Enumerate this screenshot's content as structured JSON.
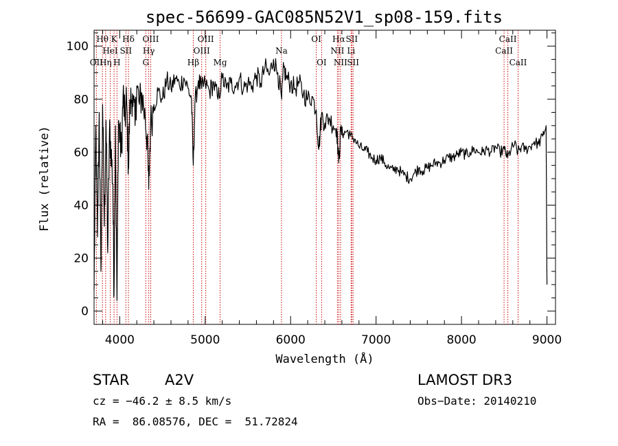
{
  "chart_data": {
    "type": "line",
    "title": "spec-56699-GAC085N52V1_sp08-159.fits",
    "xlabel": "Wavelength (Å)",
    "ylabel": "Flux (relative)",
    "xlim": [
      3700,
      9100
    ],
    "ylim": [
      -5,
      106
    ],
    "xticks": [
      4000,
      5000,
      6000,
      7000,
      8000,
      9000
    ],
    "yticks": [
      0,
      20,
      40,
      60,
      80,
      100
    ],
    "grid": false,
    "colors": {
      "line": "#000000",
      "marker": "#cc0000",
      "background": "#ffffff"
    },
    "series": [
      {
        "name": "flux",
        "points": [
          [
            3700,
            8
          ],
          [
            3720,
            70
          ],
          [
            3740,
            28
          ],
          [
            3760,
            75
          ],
          [
            3780,
            15
          ],
          [
            3800,
            78
          ],
          [
            3820,
            32
          ],
          [
            3840,
            72
          ],
          [
            3860,
            22
          ],
          [
            3880,
            68
          ],
          [
            3900,
            60
          ],
          [
            3920,
            48
          ],
          [
            3933,
            6
          ],
          [
            3950,
            70
          ],
          [
            3968,
            4
          ],
          [
            3985,
            72
          ],
          [
            4000,
            66
          ],
          [
            4020,
            60
          ],
          [
            4040,
            82
          ],
          [
            4060,
            72
          ],
          [
            4080,
            80
          ],
          [
            4102,
            54
          ],
          [
            4120,
            78
          ],
          [
            4150,
            82
          ],
          [
            4180,
            70
          ],
          [
            4200,
            85
          ],
          [
            4230,
            78
          ],
          [
            4260,
            82
          ],
          [
            4300,
            72
          ],
          [
            4320,
            66
          ],
          [
            4340,
            46
          ],
          [
            4360,
            70
          ],
          [
            4400,
            78
          ],
          [
            4450,
            83
          ],
          [
            4500,
            80
          ],
          [
            4550,
            87
          ],
          [
            4600,
            84
          ],
          [
            4650,
            88
          ],
          [
            4700,
            85
          ],
          [
            4750,
            88
          ],
          [
            4800,
            84
          ],
          [
            4840,
            80
          ],
          [
            4861,
            55
          ],
          [
            4880,
            78
          ],
          [
            4920,
            87
          ],
          [
            4960,
            84
          ],
          [
            5000,
            86
          ],
          [
            5050,
            83
          ],
          [
            5100,
            86
          ],
          [
            5150,
            80
          ],
          [
            5200,
            88
          ],
          [
            5250,
            84
          ],
          [
            5300,
            86
          ],
          [
            5350,
            85
          ],
          [
            5400,
            88
          ],
          [
            5450,
            84
          ],
          [
            5500,
            86
          ],
          [
            5550,
            85
          ],
          [
            5600,
            89
          ],
          [
            5650,
            86
          ],
          [
            5700,
            92
          ],
          [
            5750,
            89
          ],
          [
            5800,
            95
          ],
          [
            5850,
            90
          ],
          [
            5895,
            80
          ],
          [
            5920,
            92
          ],
          [
            5950,
            88
          ],
          [
            6000,
            86
          ],
          [
            6050,
            84
          ],
          [
            6100,
            86
          ],
          [
            6150,
            82
          ],
          [
            6200,
            80
          ],
          [
            6250,
            81
          ],
          [
            6300,
            76
          ],
          [
            6330,
            61
          ],
          [
            6360,
            74
          ],
          [
            6400,
            71
          ],
          [
            6450,
            73
          ],
          [
            6500,
            70
          ],
          [
            6540,
            69
          ],
          [
            6563,
            56
          ],
          [
            6585,
            68
          ],
          [
            6620,
            67
          ],
          [
            6660,
            68
          ],
          [
            6700,
            66
          ],
          [
            6750,
            65
          ],
          [
            6800,
            62
          ],
          [
            6850,
            61
          ],
          [
            6900,
            60
          ],
          [
            6950,
            58
          ],
          [
            7000,
            57
          ],
          [
            7050,
            58
          ],
          [
            7100,
            56
          ],
          [
            7150,
            54
          ],
          [
            7200,
            53
          ],
          [
            7250,
            54
          ],
          [
            7300,
            52
          ],
          [
            7350,
            51
          ],
          [
            7400,
            50
          ],
          [
            7450,
            52
          ],
          [
            7500,
            54
          ],
          [
            7550,
            53
          ],
          [
            7600,
            54
          ],
          [
            7650,
            55
          ],
          [
            7700,
            56
          ],
          [
            7750,
            56
          ],
          [
            7800,
            57
          ],
          [
            7850,
            58
          ],
          [
            7900,
            58
          ],
          [
            7950,
            59
          ],
          [
            8000,
            60
          ],
          [
            8050,
            59
          ],
          [
            8100,
            60
          ],
          [
            8150,
            61
          ],
          [
            8200,
            60
          ],
          [
            8250,
            60
          ],
          [
            8300,
            61
          ],
          [
            8350,
            60
          ],
          [
            8400,
            62
          ],
          [
            8450,
            60
          ],
          [
            8500,
            61
          ],
          [
            8540,
            58
          ],
          [
            8580,
            61
          ],
          [
            8620,
            63
          ],
          [
            8660,
            60
          ],
          [
            8700,
            62
          ],
          [
            8750,
            61
          ],
          [
            8800,
            62
          ],
          [
            8850,
            64
          ],
          [
            8900,
            63
          ],
          [
            8950,
            66
          ],
          [
            8990,
            70
          ],
          [
            9000,
            10
          ]
        ]
      }
    ],
    "line_markers": [
      {
        "label": "OII",
        "x": 3727,
        "row": 2
      },
      {
        "label": "Hθ",
        "x": 3798,
        "row": 0
      },
      {
        "label": "Hη",
        "x": 3835,
        "row": 2
      },
      {
        "label": "HeI",
        "x": 3889,
        "row": 1
      },
      {
        "label": "K",
        "x": 3934,
        "row": 0
      },
      {
        "label": "SII",
        "x": 4072,
        "row": 1
      },
      {
        "label": "H",
        "x": 3968,
        "row": 2
      },
      {
        "label": "Hδ",
        "x": 4102,
        "row": 0
      },
      {
        "label": "OIII",
        "x": 4363,
        "row": 0
      },
      {
        "label": "Hγ",
        "x": 4340,
        "row": 1
      },
      {
        "label": "G",
        "x": 4305,
        "row": 2
      },
      {
        "label": "Hβ",
        "x": 4861,
        "row": 2
      },
      {
        "label": "OIII",
        "x": 5007,
        "row": 0
      },
      {
        "label": "OIII",
        "x": 4959,
        "row": 1
      },
      {
        "label": "Mg",
        "x": 5175,
        "row": 2
      },
      {
        "label": "Na",
        "x": 5893,
        "row": 1
      },
      {
        "label": "OI",
        "x": 6300,
        "row": 0
      },
      {
        "label": "OI",
        "x": 6363,
        "row": 2
      },
      {
        "label": "Hα",
        "x": 6563,
        "row": 0
      },
      {
        "label": "SII",
        "x": 6716,
        "row": 0
      },
      {
        "label": "NII",
        "x": 6548,
        "row": 1
      },
      {
        "label": "Li",
        "x": 6708,
        "row": 1
      },
      {
        "label": "NII",
        "x": 6584,
        "row": 2
      },
      {
        "label": "SII",
        "x": 6731,
        "row": 2
      },
      {
        "label": "CaII",
        "x": 8542,
        "row": 0
      },
      {
        "label": "CaII",
        "x": 8498,
        "row": 1
      },
      {
        "label": "CaII",
        "x": 8662,
        "row": 2
      }
    ]
  },
  "info": {
    "object_class": "STAR",
    "subclass": "A2V",
    "survey": "LAMOST DR3",
    "redshift": "cz = −46.2 ± 8.5 km/s",
    "obs_date": "Obs−Date: 20140210",
    "coords": "RA =  86.08576, DEC =  51.72824"
  }
}
